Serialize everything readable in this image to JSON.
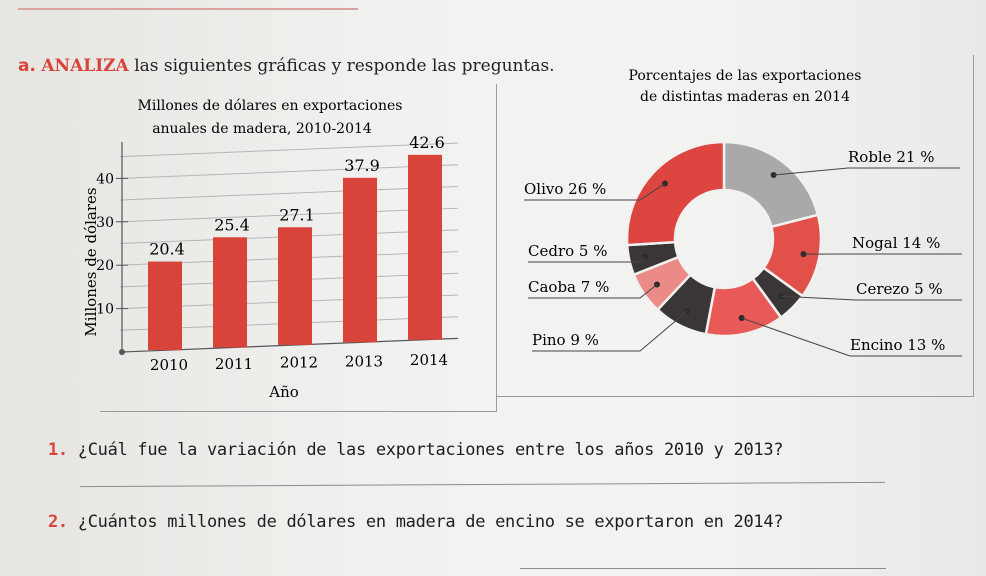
{
  "instruction": {
    "badge": "a.",
    "keyword": "ANALIZA",
    "text": "las siguientes gráficas y responde las preguntas."
  },
  "bar_chart": {
    "title_line1": "Millones de dólares en exportaciones",
    "title_line2": "anuales de madera, 2010-2014",
    "xlabel": "Año",
    "ylabel": "Millones de dólares",
    "yticks": [
      "10",
      "20",
      "30",
      "40"
    ]
  },
  "donut_chart": {
    "title_line1": "Porcentajes de las exportaciones",
    "title_line2": "de distintas maderas en 2014"
  },
  "chart_data": [
    {
      "type": "bar",
      "title": "Millones de dólares en exportaciones anuales de madera, 2010-2014",
      "xlabel": "Año",
      "ylabel": "Millones de dólares",
      "categories": [
        "2010",
        "2011",
        "2012",
        "2013",
        "2014"
      ],
      "values": [
        20.4,
        25.4,
        27.1,
        37.9,
        42.6
      ],
      "value_labels": [
        "20.4",
        "25.4",
        "27.1",
        "37.9",
        "42.6"
      ],
      "ylim": [
        0,
        47
      ],
      "yticks": [
        10,
        20,
        30,
        40
      ],
      "bar_color": "#d8433a",
      "grid": true
    },
    {
      "type": "pie",
      "donut": true,
      "title": "Porcentajes de las exportaciones de distintas maderas en 2014",
      "slices": [
        {
          "name": "Roble",
          "label": "Roble 21 %",
          "value": 21,
          "color": "#a9a9a9"
        },
        {
          "name": "Nogal",
          "label": "Nogal 14 %",
          "value": 14,
          "color": "#e2504a"
        },
        {
          "name": "Cerezo",
          "label": "Cerezo 5 %",
          "value": 5,
          "color": "#3a3638"
        },
        {
          "name": "Encino",
          "label": "Encino 13 %",
          "value": 13,
          "color": "#e75a57"
        },
        {
          "name": "Pino",
          "label": "Pino 9 %",
          "value": 9,
          "color": "#3a3638"
        },
        {
          "name": "Caoba",
          "label": "Caoba 7 %",
          "value": 7,
          "color": "#ec8a87"
        },
        {
          "name": "Cedro",
          "label": "Cedro 5 %",
          "value": 5,
          "color": "#3a3638"
        },
        {
          "name": "Olivo",
          "label": "Olivo 26 %",
          "value": 26,
          "color": "#dd4540"
        }
      ]
    }
  ],
  "questions": [
    {
      "number": "1.",
      "text": "¿Cuál fue la variación de las exportaciones entre los años 2010 y 2013?"
    },
    {
      "number": "2.",
      "text": "¿Cuántos millones de dólares en madera de encino se exportaron en 2014?"
    }
  ],
  "colors": {
    "accent": "#d8433a",
    "dark": "#3a3638",
    "grey": "#a9a9a9"
  }
}
